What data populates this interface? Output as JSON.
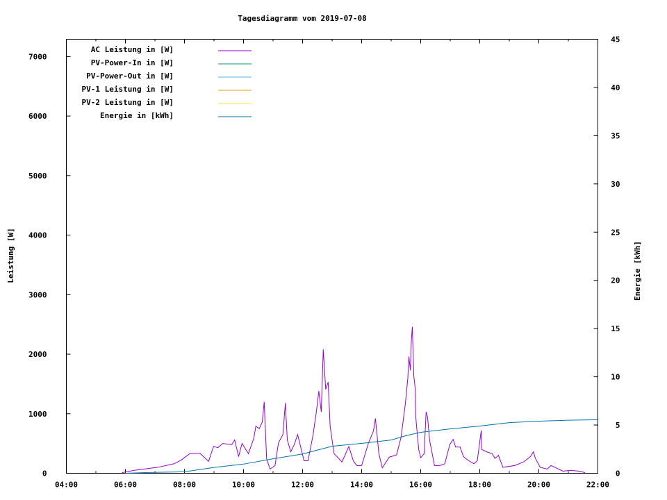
{
  "chart_data": {
    "type": "line",
    "title": "Tagesdiagramm vom 2019-07-08",
    "ylabel": "Leistung [W]",
    "y2label": "Energie [kWh]",
    "xlabel": "",
    "xlim": [
      "04:00",
      "22:00"
    ],
    "ylim": [
      0,
      7290
    ],
    "y2lim": [
      0,
      45
    ],
    "x_ticks": [
      "04:00",
      "06:00",
      "08:00",
      "10:00",
      "12:00",
      "14:00",
      "16:00",
      "18:00",
      "20:00",
      "22:00"
    ],
    "y_ticks": [
      "0",
      "1000",
      "2000",
      "3000",
      "4000",
      "5000",
      "6000",
      "7000"
    ],
    "y2_ticks": [
      "0",
      "5",
      "10",
      "15",
      "20",
      "25",
      "30",
      "35",
      "40",
      "45"
    ],
    "grid": false,
    "legend_position": "top-left",
    "series": [
      {
        "name": "AC Leistung in [W]",
        "color": "#9400d3",
        "axis": "left",
        "points": [
          [
            "05:53",
            10
          ],
          [
            "06:18",
            50
          ],
          [
            "07:06",
            100
          ],
          [
            "07:39",
            160
          ],
          [
            "07:53",
            220
          ],
          [
            "08:11",
            330
          ],
          [
            "08:31",
            340
          ],
          [
            "08:49",
            200
          ],
          [
            "08:59",
            450
          ],
          [
            "09:08",
            430
          ],
          [
            "09:18",
            500
          ],
          [
            "09:36",
            480
          ],
          [
            "09:42",
            560
          ],
          [
            "09:50",
            280
          ],
          [
            "09:57",
            500
          ],
          [
            "10:10",
            330
          ],
          [
            "10:21",
            590
          ],
          [
            "10:25",
            790
          ],
          [
            "10:32",
            750
          ],
          [
            "10:38",
            860
          ],
          [
            "10:42",
            1200
          ],
          [
            "10:47",
            240
          ],
          [
            "10:54",
            70
          ],
          [
            "11:04",
            130
          ],
          [
            "11:11",
            510
          ],
          [
            "11:20",
            650
          ],
          [
            "11:25",
            1180
          ],
          [
            "11:29",
            560
          ],
          [
            "11:36",
            360
          ],
          [
            "11:43",
            480
          ],
          [
            "11:50",
            650
          ],
          [
            "12:03",
            210
          ],
          [
            "12:11",
            210
          ],
          [
            "12:21",
            630
          ],
          [
            "12:28",
            1030
          ],
          [
            "12:33",
            1380
          ],
          [
            "12:38",
            1030
          ],
          [
            "12:42",
            2080
          ],
          [
            "12:47",
            1410
          ],
          [
            "12:52",
            1530
          ],
          [
            "12:56",
            790
          ],
          [
            "13:04",
            330
          ],
          [
            "13:20",
            190
          ],
          [
            "13:34",
            450
          ],
          [
            "13:43",
            210
          ],
          [
            "13:50",
            130
          ],
          [
            "14:00",
            130
          ],
          [
            "14:14",
            510
          ],
          [
            "14:24",
            710
          ],
          [
            "14:28",
            920
          ],
          [
            "14:35",
            330
          ],
          [
            "14:42",
            90
          ],
          [
            "14:56",
            270
          ],
          [
            "15:11",
            310
          ],
          [
            "15:20",
            600
          ],
          [
            "15:29",
            1180
          ],
          [
            "15:34",
            1610
          ],
          [
            "15:36",
            1960
          ],
          [
            "15:39",
            1730
          ],
          [
            "15:41",
            2230
          ],
          [
            "15:43",
            2460
          ],
          [
            "15:46",
            1640
          ],
          [
            "15:49",
            1410
          ],
          [
            "15:50",
            940
          ],
          [
            "15:56",
            400
          ],
          [
            "16:00",
            260
          ],
          [
            "16:07",
            330
          ],
          [
            "16:11",
            1030
          ],
          [
            "16:14",
            940
          ],
          [
            "16:18",
            560
          ],
          [
            "16:28",
            130
          ],
          [
            "16:39",
            130
          ],
          [
            "16:49",
            160
          ],
          [
            "16:59",
            480
          ],
          [
            "17:06",
            570
          ],
          [
            "17:11",
            440
          ],
          [
            "17:20",
            440
          ],
          [
            "17:27",
            280
          ],
          [
            "17:36",
            220
          ],
          [
            "17:48",
            160
          ],
          [
            "17:55",
            210
          ],
          [
            "18:03",
            720
          ],
          [
            "18:04",
            400
          ],
          [
            "18:14",
            360
          ],
          [
            "18:25",
            330
          ],
          [
            "18:31",
            250
          ],
          [
            "18:38",
            300
          ],
          [
            "18:47",
            100
          ],
          [
            "19:11",
            130
          ],
          [
            "19:29",
            190
          ],
          [
            "19:43",
            280
          ],
          [
            "19:49",
            360
          ],
          [
            "19:53",
            250
          ],
          [
            "20:03",
            100
          ],
          [
            "20:17",
            70
          ],
          [
            "20:25",
            130
          ],
          [
            "20:49",
            35
          ],
          [
            "21:04",
            50
          ],
          [
            "21:22",
            35
          ],
          [
            "21:34",
            10
          ]
        ]
      },
      {
        "name": "PV-Power-In in [W]",
        "color": "#009e73",
        "axis": "left",
        "points": []
      },
      {
        "name": "PV-Power-Out in [W]",
        "color": "#56b4e9",
        "axis": "left",
        "points": []
      },
      {
        "name": "PV-1 Leistung in [W]",
        "color": "#e69f00",
        "axis": "left",
        "points": []
      },
      {
        "name": "PV-2 Leistung in [W]",
        "color": "#f0e442",
        "axis": "left",
        "points": []
      },
      {
        "name": "Energie in [kWh]",
        "color": "#0072b2",
        "axis": "right",
        "points": [
          [
            "06:00",
            0
          ],
          [
            "06:40",
            0.07
          ],
          [
            "08:00",
            0.15
          ],
          [
            "09:00",
            0.6
          ],
          [
            "10:00",
            0.95
          ],
          [
            "11:00",
            1.5
          ],
          [
            "12:00",
            2.0
          ],
          [
            "12:30",
            2.4
          ],
          [
            "13:00",
            2.8
          ],
          [
            "13:30",
            2.95
          ],
          [
            "14:00",
            3.1
          ],
          [
            "15:00",
            3.45
          ],
          [
            "15:30",
            3.9
          ],
          [
            "16:00",
            4.25
          ],
          [
            "17:00",
            4.6
          ],
          [
            "18:00",
            4.9
          ],
          [
            "19:00",
            5.25
          ],
          [
            "20:00",
            5.4
          ],
          [
            "21:00",
            5.5
          ],
          [
            "22:00",
            5.55
          ]
        ]
      }
    ]
  }
}
